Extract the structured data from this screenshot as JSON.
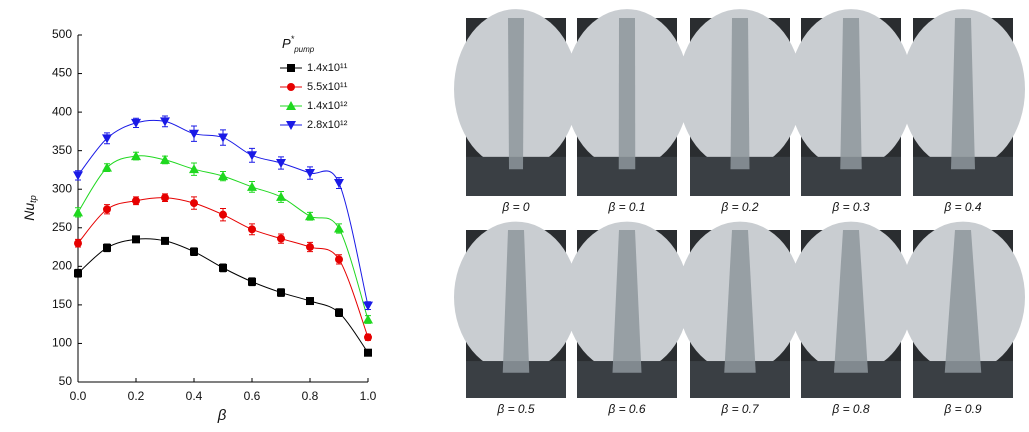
{
  "chart_data": {
    "type": "line",
    "x_label": "β",
    "y_label": {
      "base": "Nu",
      "sub": "tp"
    },
    "legend_title": {
      "base": "P",
      "sup": "*",
      "sub": "pump"
    },
    "x": [
      0,
      0.1,
      0.2,
      0.3,
      0.4,
      0.5,
      0.6,
      0.7,
      0.8,
      0.9,
      1.0
    ],
    "xlim": [
      0,
      1.0
    ],
    "xticks": [
      {
        "value": 0,
        "label": "0.0"
      },
      0.2,
      0.4,
      0.6,
      0.8,
      {
        "value": 1.0,
        "label": "1.0"
      }
    ],
    "ylim": [
      50,
      500
    ],
    "yticks": [
      50,
      100,
      150,
      200,
      250,
      300,
      350,
      400,
      450,
      500
    ],
    "legend": "upper right",
    "series": [
      {
        "name": "1.4x10¹¹",
        "color": "#000000",
        "marker": "square",
        "values": [
          191,
          224,
          235,
          233,
          219,
          198,
          180,
          166,
          155,
          140,
          88
        ],
        "errors": [
          5,
          5,
          4,
          4,
          5,
          5,
          5,
          5,
          4,
          5,
          4
        ]
      },
      {
        "name": "5.5x10¹¹",
        "color": "#e60000",
        "marker": "circle",
        "values": [
          230,
          274,
          285,
          289,
          282,
          267,
          248,
          236,
          225,
          209,
          108
        ],
        "errors": [
          5,
          6,
          5,
          5,
          8,
          8,
          7,
          6,
          6,
          6,
          4
        ]
      },
      {
        "name": "1.4x10¹²",
        "color": "#1fd81f",
        "marker": "triangle-up",
        "values": [
          270,
          328,
          343,
          338,
          326,
          317,
          303,
          290,
          265,
          249,
          131
        ],
        "errors": [
          6,
          5,
          5,
          5,
          8,
          6,
          7,
          7,
          5,
          6,
          5
        ]
      },
      {
        "name": "2.8x10¹²",
        "color": "#1a1ae6",
        "marker": "triangle-down",
        "values": [
          318,
          366,
          386,
          388,
          372,
          367,
          344,
          334,
          321,
          308,
          149
        ],
        "errors": [
          6,
          7,
          6,
          7,
          10,
          10,
          9,
          8,
          8,
          7,
          5
        ]
      }
    ]
  },
  "photo_captions": [
    "β = 0",
    "β = 0.1",
    "β = 0.2",
    "β = 0.3",
    "β = 0.4",
    "β = 0.5",
    "β = 0.6",
    "β = 0.7",
    "β = 0.8",
    "β = 0.9"
  ]
}
